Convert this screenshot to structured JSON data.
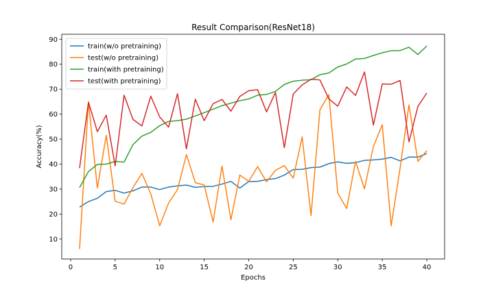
{
  "chart_data": {
    "type": "line",
    "title": "Result Comparison(ResNet18)",
    "xlabel": "Epochs",
    "ylabel": "Accuracy(%)",
    "xlim": [
      -1,
      42
    ],
    "ylim": [
      2,
      92
    ],
    "xticks": [
      0,
      5,
      10,
      15,
      20,
      25,
      30,
      35,
      40
    ],
    "yticks": [
      10,
      20,
      30,
      40,
      50,
      60,
      70,
      80,
      90
    ],
    "grid": false,
    "legend_position": "top-left",
    "x": [
      1,
      2,
      3,
      4,
      5,
      6,
      7,
      8,
      9,
      10,
      11,
      12,
      13,
      14,
      15,
      16,
      17,
      18,
      19,
      20,
      21,
      22,
      23,
      24,
      25,
      26,
      27,
      28,
      29,
      30,
      31,
      32,
      33,
      34,
      35,
      36,
      37,
      38,
      39,
      40
    ],
    "series": [
      {
        "name": "train(w/o pretraining)",
        "color": "#1f77b4",
        "values": [
          22.8,
          25.0,
          26.3,
          29.0,
          29.5,
          28.4,
          29.3,
          30.8,
          30.8,
          29.8,
          30.8,
          31.3,
          31.6,
          30.7,
          31.0,
          31.1,
          32.0,
          33.1,
          30.4,
          33.0,
          33.1,
          33.8,
          34.2,
          35.6,
          37.8,
          37.9,
          38.6,
          38.8,
          40.2,
          40.9,
          40.3,
          40.6,
          41.5,
          41.7,
          42.0,
          42.7,
          41.3,
          42.8,
          42.8,
          44.2
        ]
      },
      {
        "name": "test(w/o pretraining)",
        "color": "#ff7f0e",
        "values": [
          6.0,
          64.9,
          30.4,
          51.5,
          25.1,
          24.0,
          30.6,
          36.3,
          28.1,
          15.3,
          24.4,
          29.8,
          43.8,
          32.6,
          31.6,
          16.8,
          39.2,
          17.7,
          35.6,
          33.1,
          39.0,
          32.9,
          37.5,
          39.4,
          34.4,
          50.9,
          19.4,
          61.8,
          67.8,
          28.4,
          22.2,
          41.1,
          30.1,
          47.0,
          55.8,
          15.3,
          38.4,
          63.7,
          41.1,
          45.4
        ]
      },
      {
        "name": "train(with pretraining)",
        "color": "#2ca02c",
        "values": [
          30.6,
          37.0,
          39.9,
          40.0,
          41.1,
          40.8,
          47.8,
          51.2,
          52.7,
          55.4,
          57.1,
          57.4,
          58.0,
          59.3,
          60.6,
          62.0,
          63.4,
          64.4,
          65.4,
          66.1,
          67.6,
          67.9,
          69.1,
          71.9,
          73.2,
          73.6,
          73.8,
          75.8,
          76.5,
          78.9,
          80.1,
          82.1,
          82.3,
          83.5,
          84.6,
          85.4,
          85.5,
          86.8,
          83.9,
          87.3
        ]
      },
      {
        "name": "test(with pretraining)",
        "color": "#d62728",
        "values": [
          38.4,
          64.8,
          53.0,
          59.6,
          39.3,
          67.6,
          57.9,
          55.3,
          67.2,
          58.9,
          54.8,
          68.2,
          46.1,
          66.0,
          57.4,
          64.2,
          65.9,
          61.2,
          67.1,
          69.4,
          69.8,
          60.9,
          68.7,
          46.6,
          68.1,
          71.7,
          74.0,
          73.7,
          66.1,
          63.2,
          70.9,
          67.5,
          76.9,
          55.6,
          72.1,
          72.0,
          73.5,
          48.9,
          63.1,
          68.5
        ]
      }
    ]
  }
}
